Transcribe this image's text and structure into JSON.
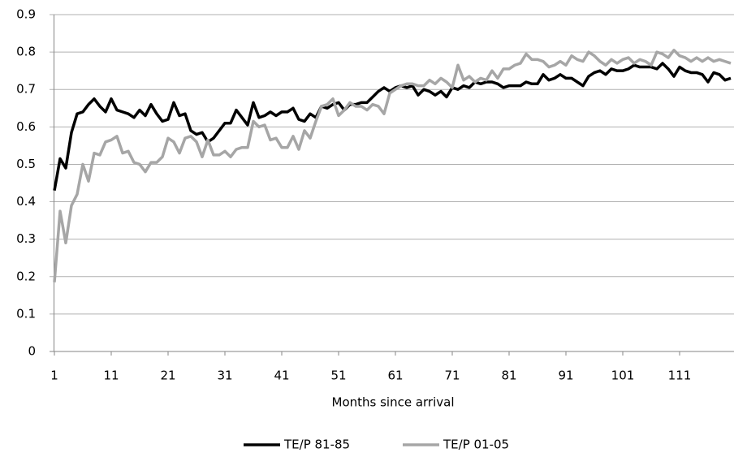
{
  "chart_data": {
    "type": "line",
    "x_label": "Months since arrival",
    "x": [
      1,
      2,
      3,
      4,
      5,
      6,
      7,
      8,
      9,
      10,
      11,
      12,
      13,
      14,
      15,
      16,
      17,
      18,
      19,
      20,
      21,
      22,
      23,
      24,
      25,
      26,
      27,
      28,
      29,
      30,
      31,
      32,
      33,
      34,
      35,
      36,
      37,
      38,
      39,
      40,
      41,
      42,
      43,
      44,
      45,
      46,
      47,
      48,
      49,
      50,
      51,
      52,
      53,
      54,
      55,
      56,
      57,
      58,
      59,
      60,
      61,
      62,
      63,
      64,
      65,
      66,
      67,
      68,
      69,
      70,
      71,
      72,
      73,
      74,
      75,
      76,
      77,
      78,
      79,
      80,
      81,
      82,
      83,
      84,
      85,
      86,
      87,
      88,
      89,
      90,
      91,
      92,
      93,
      94,
      95,
      96,
      97,
      98,
      99,
      100,
      101,
      102,
      103,
      104,
      105,
      106,
      107,
      108,
      109,
      110,
      111,
      112,
      113,
      114,
      115,
      116,
      117,
      118,
      119,
      120
    ],
    "xlim": [
      1,
      120
    ],
    "xticks": [
      1,
      11,
      21,
      31,
      41,
      51,
      61,
      71,
      81,
      91,
      101,
      111
    ],
    "ylim": [
      0,
      0.9
    ],
    "yticks": [
      0,
      0.1,
      0.2,
      0.3,
      0.4,
      0.5,
      0.6,
      0.7,
      0.8,
      0.9
    ],
    "grid": true,
    "legend": "bottom",
    "series": [
      {
        "name": "TE/P 81-85",
        "color": "#000000",
        "values": [
          0.43,
          0.515,
          0.49,
          0.585,
          0.635,
          0.64,
          0.66,
          0.675,
          0.655,
          0.64,
          0.675,
          0.645,
          0.64,
          0.635,
          0.625,
          0.645,
          0.63,
          0.66,
          0.635,
          0.615,
          0.62,
          0.665,
          0.63,
          0.635,
          0.59,
          0.58,
          0.585,
          0.56,
          0.57,
          0.59,
          0.61,
          0.61,
          0.645,
          0.625,
          0.605,
          0.665,
          0.625,
          0.63,
          0.64,
          0.63,
          0.64,
          0.64,
          0.65,
          0.62,
          0.615,
          0.635,
          0.625,
          0.655,
          0.65,
          0.66,
          0.665,
          0.645,
          0.66,
          0.66,
          0.665,
          0.665,
          0.68,
          0.695,
          0.705,
          0.695,
          0.705,
          0.71,
          0.705,
          0.71,
          0.685,
          0.7,
          0.695,
          0.685,
          0.695,
          0.68,
          0.705,
          0.7,
          0.71,
          0.705,
          0.72,
          0.715,
          0.72,
          0.72,
          0.715,
          0.705,
          0.71,
          0.71,
          0.71,
          0.72,
          0.715,
          0.715,
          0.74,
          0.725,
          0.73,
          0.74,
          0.73,
          0.73,
          0.72,
          0.71,
          0.735,
          0.745,
          0.75,
          0.74,
          0.755,
          0.75,
          0.75,
          0.755,
          0.765,
          0.76,
          0.76,
          0.76,
          0.755,
          0.77,
          0.755,
          0.735,
          0.76,
          0.75,
          0.745,
          0.745,
          0.74,
          0.72,
          0.745,
          0.74,
          0.725,
          0.73
        ]
      },
      {
        "name": "TE/P 01-05",
        "color": "#a6a6a6",
        "values": [
          0.185,
          0.375,
          0.29,
          0.39,
          0.42,
          0.5,
          0.455,
          0.53,
          0.525,
          0.56,
          0.565,
          0.575,
          0.53,
          0.535,
          0.505,
          0.5,
          0.48,
          0.505,
          0.505,
          0.52,
          0.57,
          0.56,
          0.53,
          0.57,
          0.575,
          0.56,
          0.52,
          0.565,
          0.525,
          0.525,
          0.535,
          0.52,
          0.54,
          0.545,
          0.545,
          0.615,
          0.6,
          0.605,
          0.565,
          0.57,
          0.545,
          0.545,
          0.575,
          0.54,
          0.59,
          0.57,
          0.615,
          0.655,
          0.66,
          0.675,
          0.63,
          0.645,
          0.665,
          0.655,
          0.655,
          0.645,
          0.66,
          0.655,
          0.635,
          0.69,
          0.7,
          0.71,
          0.715,
          0.715,
          0.71,
          0.71,
          0.725,
          0.715,
          0.73,
          0.72,
          0.705,
          0.765,
          0.725,
          0.735,
          0.72,
          0.73,
          0.725,
          0.75,
          0.73,
          0.755,
          0.755,
          0.765,
          0.77,
          0.795,
          0.78,
          0.78,
          0.775,
          0.76,
          0.765,
          0.775,
          0.765,
          0.79,
          0.78,
          0.775,
          0.8,
          0.79,
          0.775,
          0.765,
          0.78,
          0.77,
          0.78,
          0.785,
          0.77,
          0.78,
          0.775,
          0.765,
          0.8,
          0.795,
          0.785,
          0.805,
          0.79,
          0.785,
          0.775,
          0.785,
          0.775,
          0.785,
          0.775,
          0.78,
          0.775,
          0.77
        ]
      }
    ]
  }
}
